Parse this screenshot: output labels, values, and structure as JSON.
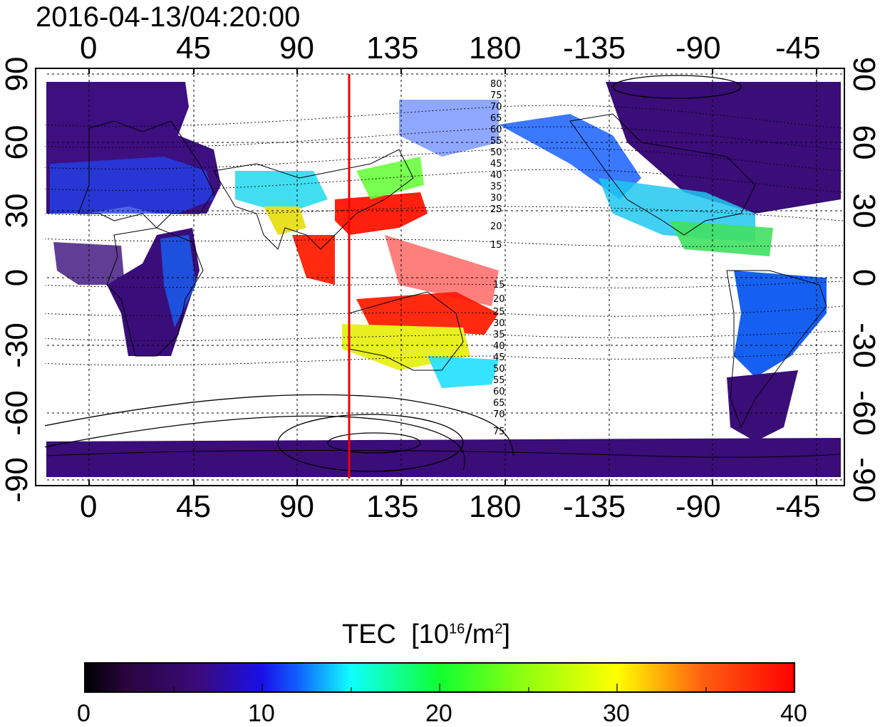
{
  "title": "2016-04-13/04:20:00",
  "lon_ticks_top": [
    "0",
    "45",
    "90",
    "135",
    "180",
    "-135",
    "-90",
    "-45"
  ],
  "lon_ticks_bottom": [
    "0",
    "45",
    "90",
    "135",
    "180",
    "-135",
    "-90",
    "-45"
  ],
  "lat_ticks_left": [
    "90",
    "60",
    "30",
    "0",
    "-30",
    "-60",
    "-90"
  ],
  "lat_ticks_right": [
    "90",
    "60",
    "30",
    "0",
    "-30",
    "-60",
    "-90"
  ],
  "contour_labels_north": [
    "80",
    "75",
    "70",
    "65",
    "60",
    "55",
    "50",
    "45",
    "40",
    "35",
    "30",
    "25",
    "20",
    "15"
  ],
  "contour_labels_south": [
    "15",
    "20",
    "25",
    "30",
    "35",
    "40",
    "45",
    "50",
    "55",
    "60",
    "65",
    "70",
    "75"
  ],
  "colorbar": {
    "title": "TEC",
    "unit_prefix": "[10",
    "unit_exp1": "16",
    "unit_mid": "/m",
    "unit_exp2": "2",
    "unit_suffix": "]",
    "ticks": [
      "0",
      "10",
      "20",
      "30",
      "40"
    ],
    "range": [
      0,
      40
    ]
  },
  "colors": {
    "marker_line": "#ee0000",
    "frame": "#000000"
  },
  "marker_longitude": 115
}
